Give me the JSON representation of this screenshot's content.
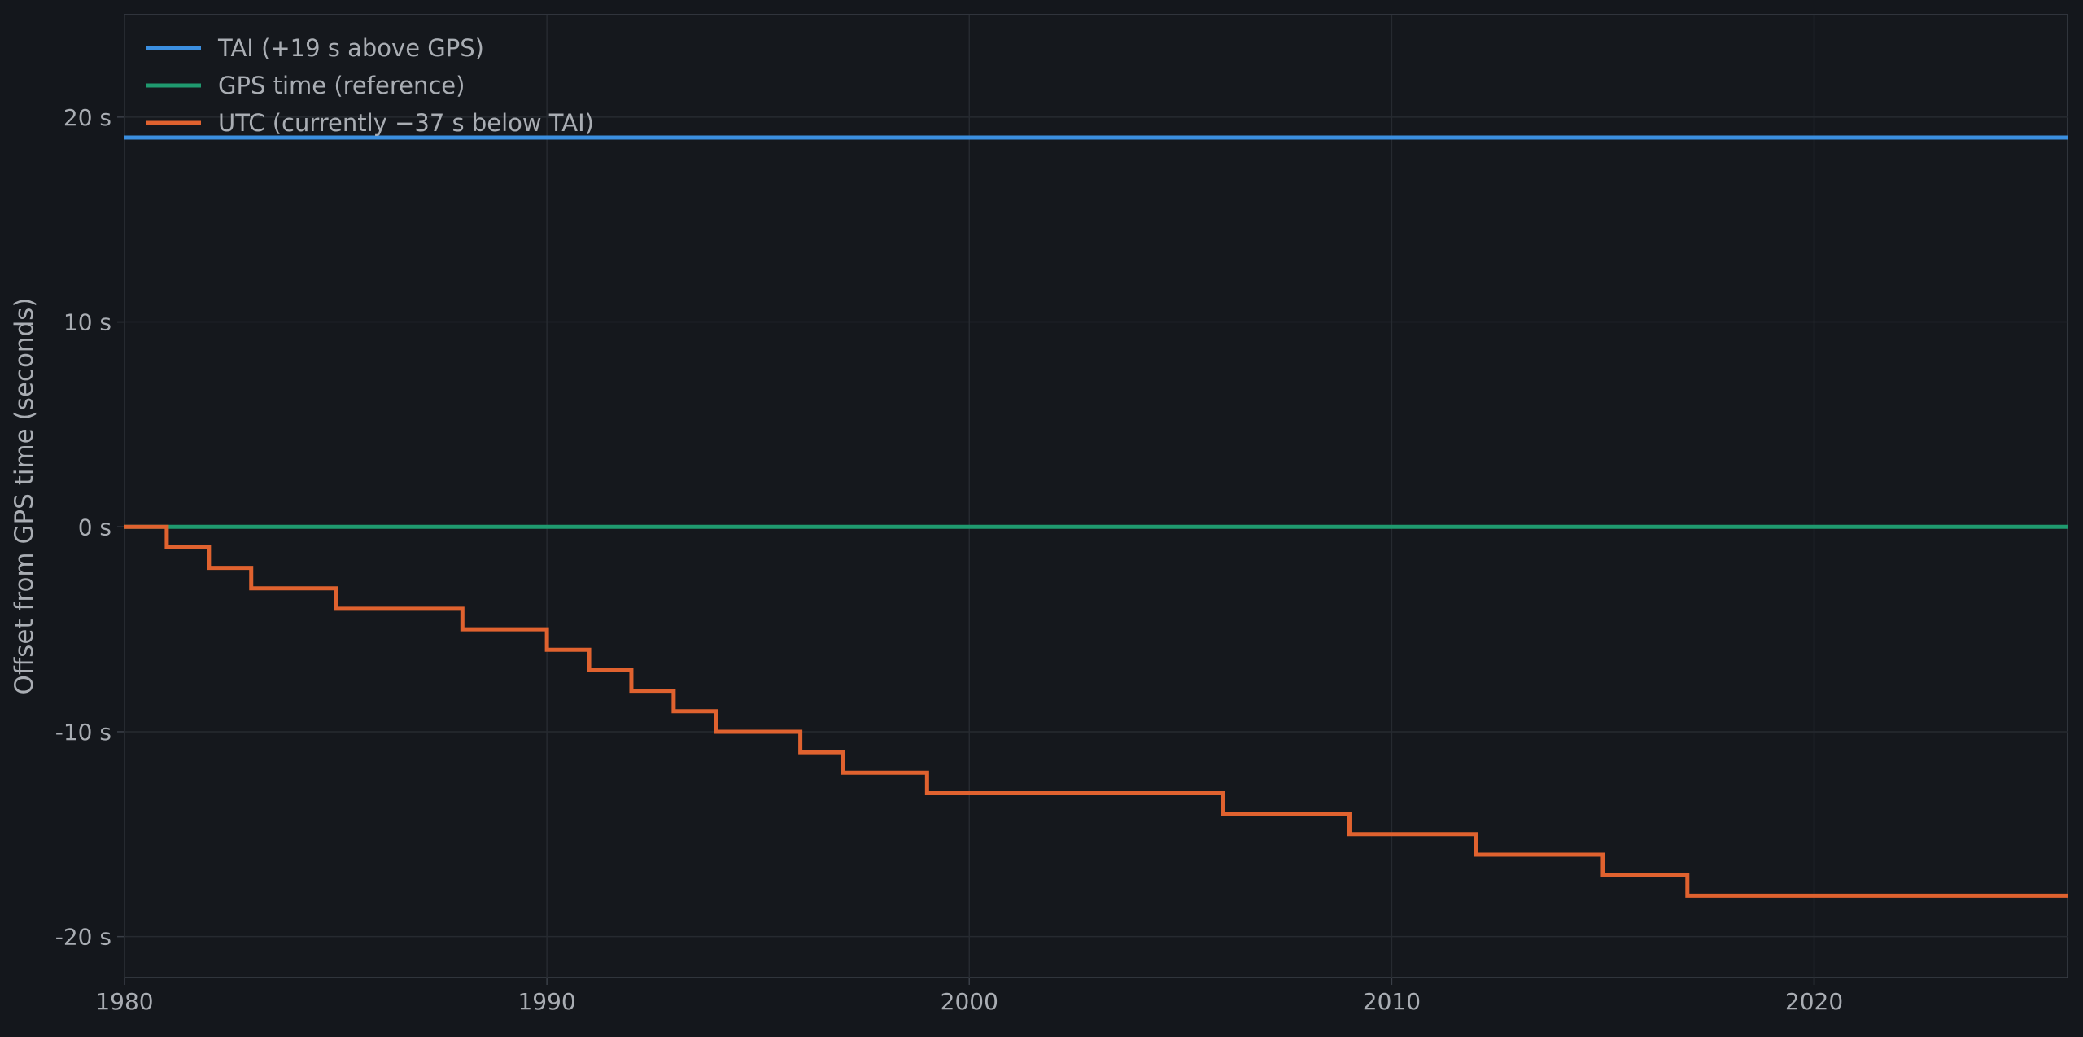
{
  "colors": {
    "background": "#14171c",
    "plot_background": "#15181d",
    "grid": "#262a30",
    "axis": "#3a3f47",
    "text": "#a9adb3"
  },
  "chart_data": {
    "type": "line",
    "title": "",
    "xlabel": "",
    "ylabel": "Offset from GPS time (seconds)",
    "xlim": [
      1980,
      2026
    ],
    "ylim": [
      -22,
      25
    ],
    "grid": true,
    "legend_position": "top-left",
    "x_ticks": [
      {
        "value": 1980,
        "label": "1980"
      },
      {
        "value": 1990,
        "label": "1990"
      },
      {
        "value": 2000,
        "label": "2000"
      },
      {
        "value": 2010,
        "label": "2010"
      },
      {
        "value": 2020,
        "label": "2020"
      }
    ],
    "y_ticks": [
      {
        "value": 20,
        "label": "20 s"
      },
      {
        "value": 10,
        "label": "10 s"
      },
      {
        "value": 0,
        "label": "0 s"
      },
      {
        "value": -10,
        "label": "-10 s"
      },
      {
        "value": -20,
        "label": "-20 s"
      }
    ],
    "series": [
      {
        "name": "TAI (+19 s above GPS)",
        "color": "#3b8fe0",
        "step": false,
        "x": [
          1980,
          2026
        ],
        "y": [
          19,
          19
        ]
      },
      {
        "name": "GPS time (reference)",
        "color": "#1f9a6f",
        "step": false,
        "x": [
          1980,
          2026
        ],
        "y": [
          0,
          0
        ]
      },
      {
        "name": "UTC (currently −37 s below TAI)",
        "color": "#e0622f",
        "step": true,
        "x": [
          1980,
          1981,
          1982,
          1983,
          1985,
          1988,
          1990,
          1991,
          1992,
          1993,
          1994,
          1996,
          1997,
          1999,
          2006,
          2009,
          2012,
          2015,
          2017,
          2026
        ],
        "y": [
          0,
          -1,
          -2,
          -3,
          -4,
          -5,
          -6,
          -7,
          -8,
          -9,
          -10,
          -11,
          -12,
          -13,
          -14,
          -15,
          -16,
          -17,
          -18,
          -18
        ]
      }
    ]
  }
}
